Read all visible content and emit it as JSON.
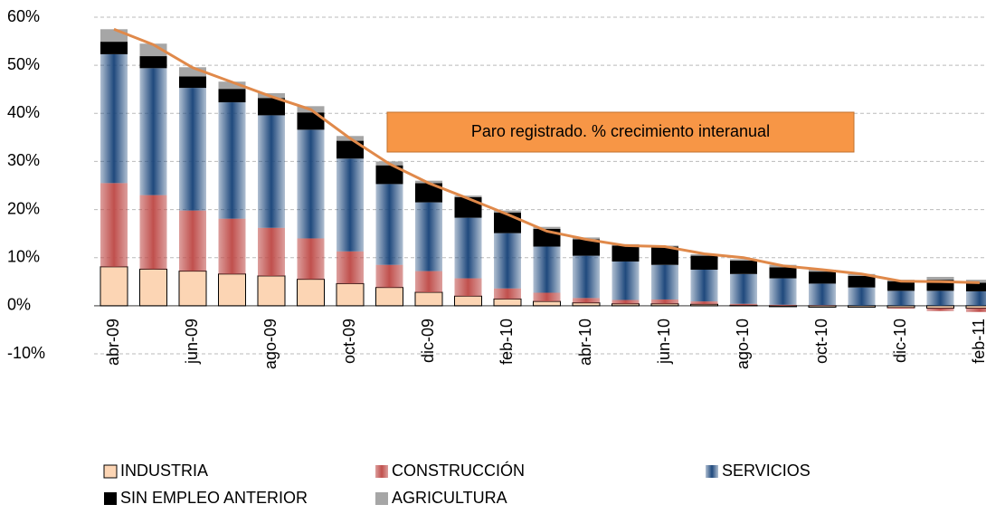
{
  "chart_data": {
    "type": "bar",
    "stacked": true,
    "categories": [
      "abr-09",
      null,
      "jun-09",
      null,
      "ago-09",
      null,
      "oct-09",
      null,
      "dic-09",
      null,
      "feb-10",
      null,
      "abr-10",
      null,
      "jun-10",
      null,
      "ago-10",
      null,
      "oct-10",
      null,
      "dic-10",
      null,
      "feb-11"
    ],
    "series": [
      {
        "name": "INDUSTRIA",
        "color": "#fcd5b4",
        "values": [
          8.1,
          7.6,
          7.2,
          6.6,
          6.2,
          5.5,
          4.6,
          3.8,
          2.8,
          2.0,
          1.4,
          0.9,
          0.6,
          0.4,
          0.4,
          0.3,
          0.1,
          -0.2,
          -0.3,
          -0.3,
          -0.4,
          -0.5,
          -0.5
        ]
      },
      {
        "name": "CONSTRUCCIÓN",
        "color": "#c0504d",
        "values": [
          17.4,
          15.4,
          12.6,
          11.5,
          10.0,
          8.5,
          6.7,
          4.7,
          4.4,
          3.7,
          2.2,
          1.8,
          1.0,
          0.8,
          0.9,
          0.6,
          0.3,
          0.2,
          0.1,
          0.0,
          -0.2,
          -0.6,
          -0.8
        ]
      },
      {
        "name": "SERVICIOS",
        "color": "#1f497d",
        "values": [
          26.8,
          26.4,
          25.5,
          24.2,
          23.4,
          22.6,
          19.3,
          16.8,
          14.3,
          12.6,
          11.5,
          9.6,
          8.8,
          8.0,
          7.2,
          6.6,
          6.2,
          5.5,
          4.5,
          3.8,
          3.1,
          3.1,
          3.0
        ]
      },
      {
        "name": "SIN EMPLEO ANTERIOR",
        "color": "#000000",
        "values": [
          2.6,
          2.5,
          2.4,
          2.8,
          3.6,
          3.6,
          3.7,
          3.9,
          4.0,
          4.3,
          4.3,
          3.7,
          3.4,
          3.3,
          3.8,
          2.9,
          2.8,
          2.3,
          2.5,
          2.4,
          2.0,
          2.3,
          1.8
        ]
      },
      {
        "name": "AGRICULTURA",
        "color": "#a6a6a6",
        "values": [
          2.6,
          2.6,
          1.9,
          1.5,
          1.0,
          1.3,
          1.0,
          0.8,
          0.5,
          0.3,
          0.4,
          0.4,
          0.4,
          0.3,
          0.2,
          0.3,
          0.3,
          0.5,
          0.4,
          0.4,
          0.3,
          0.6,
          0.6
        ]
      }
    ],
    "line": {
      "color": "#e0894a",
      "values": [
        57.5,
        54.3,
        49.5,
        46.5,
        43.5,
        40.8,
        34.8,
        29.5,
        25.5,
        22.3,
        19.0,
        15.5,
        13.8,
        12.5,
        12.3,
        10.8,
        10.0,
        8.3,
        7.5,
        6.6,
        5.1,
        5.0,
        4.8
      ]
    },
    "annotation": "Paro registrado. % crecimiento interanual",
    "ylim": [
      -10,
      60
    ],
    "yticks": [
      {
        "value": -10,
        "label": "-10%"
      },
      {
        "value": 0,
        "label": "0%"
      },
      {
        "value": 10,
        "label": "10%"
      },
      {
        "value": 20,
        "label": "20%"
      },
      {
        "value": 30,
        "label": "30%"
      },
      {
        "value": 40,
        "label": "40%"
      },
      {
        "value": 50,
        "label": "50%"
      },
      {
        "value": 60,
        "label": "60%"
      }
    ],
    "grid": true
  }
}
